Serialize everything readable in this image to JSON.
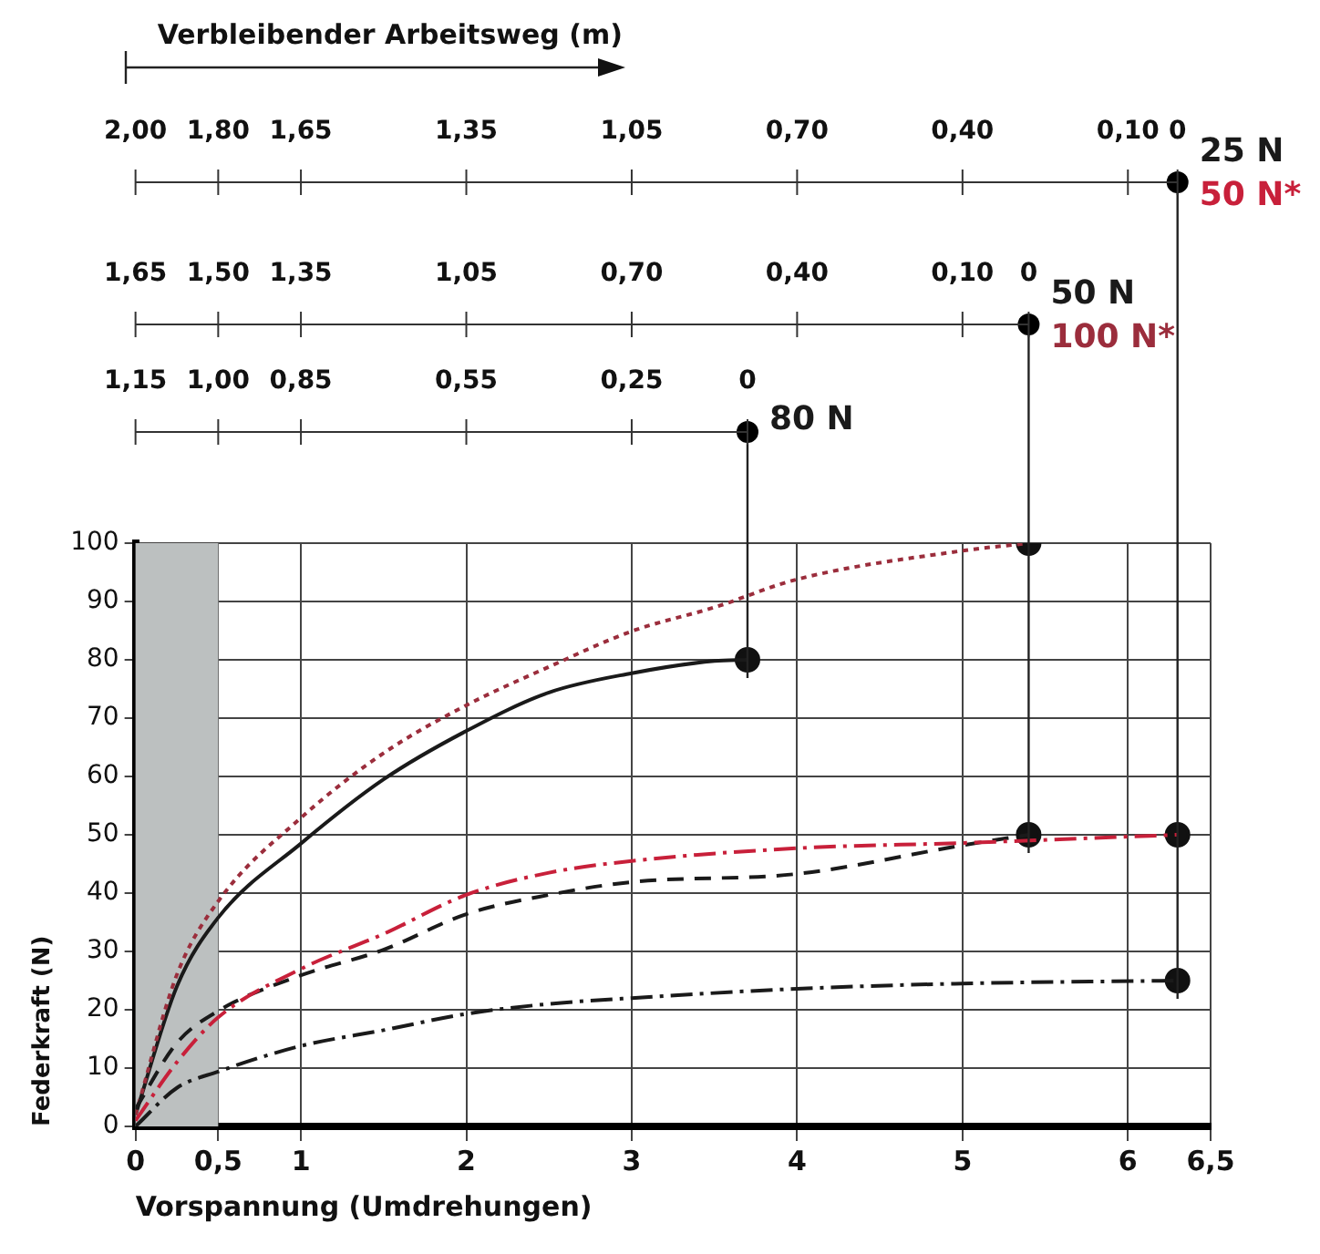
{
  "chart_data": [
    {
      "type": "other",
      "title": "Verbleibender Arbeitsweg (m)",
      "annotations": [
        "2,00",
        "1,80",
        "1,65",
        "1,35",
        "1,05",
        "0,70",
        "0,40",
        "0,10",
        "0"
      ]
    },
    {
      "type": "other",
      "annotations": [
        "1,65",
        "1,50",
        "1,35",
        "1,05",
        "0,70",
        "0,40",
        "0,10",
        "0"
      ]
    },
    {
      "type": "other",
      "annotations": [
        "1,15",
        "1,00",
        "0,85",
        "0,55",
        "0,25",
        "0"
      ]
    },
    {
      "type": "line",
      "xlabel": "Vorspannung (Umdrehungen)",
      "ylabel": "Federkraft (N)",
      "xlim": [
        0,
        6.5
      ],
      "xticks": [
        0,
        {
          "value": 0.5,
          "label": "0,5"
        },
        1,
        2,
        3,
        4,
        5,
        6,
        {
          "value": 6.5,
          "label": "6,5"
        }
      ],
      "ylim": [
        0,
        100
      ],
      "yticks": [
        0,
        10,
        20,
        30,
        40,
        50,
        60,
        70,
        80,
        90,
        100
      ],
      "grid": true,
      "marker": "none",
      "bands": [
        {
          "axis": "x",
          "from": 0,
          "to": 0.5,
          "color": "#bcc0c0"
        }
      ],
      "series": [
        {
          "name": "25 N",
          "color": "#1a1a1a",
          "line_style": "dashdot",
          "x": [
            0,
            0.25,
            0.5,
            1,
            1.5,
            2,
            2.5,
            3,
            4,
            5,
            6.3
          ],
          "values": [
            0,
            6.6,
            9.4,
            13.8,
            16.5,
            19.3,
            21,
            22,
            23.6,
            24.5,
            25
          ]
        },
        {
          "name": "50 N*",
          "color": "#c8203a",
          "line_style": "dashdot",
          "x": [
            0,
            0.25,
            0.5,
            1,
            1.5,
            2,
            2.5,
            3,
            4,
            5,
            6.3
          ],
          "values": [
            1,
            11,
            18.7,
            27,
            33,
            39.7,
            43.5,
            45.5,
            47.7,
            48.6,
            50
          ]
        },
        {
          "name": "50 N",
          "color": "#1a1a1a",
          "line_style": "dashed",
          "x": [
            0,
            0.25,
            0.5,
            1,
            1.5,
            2,
            2.5,
            3,
            4,
            5,
            5.4
          ],
          "values": [
            3,
            14.3,
            19.8,
            25.9,
            30.3,
            36.4,
            39.7,
            41.9,
            43.3,
            48.2,
            50
          ]
        },
        {
          "name": "100 N*",
          "color": "#9b2d3c",
          "line_style": "dotted",
          "x": [
            0,
            0.25,
            0.5,
            1,
            1.5,
            2,
            2.5,
            3,
            3.5,
            4,
            5,
            5.4
          ],
          "values": [
            2,
            26,
            38.6,
            52.9,
            64,
            72.2,
            78.8,
            84.9,
            89,
            93.8,
            98.7,
            100
          ]
        },
        {
          "name": "80 N",
          "color": "#1a1a1a",
          "line_style": "solid",
          "x": [
            0,
            0.25,
            0.5,
            1,
            1.5,
            2,
            2.5,
            3,
            3.5,
            3.7
          ],
          "values": [
            2,
            24,
            35.8,
            48.5,
            59.5,
            67.8,
            74.4,
            77.7,
            79.8,
            80
          ]
        },
        {
          "type": "scatter",
          "color": "#111111",
          "marker": "circle",
          "x": [
            3.7,
            5.4,
            5.4,
            6.3,
            6.3
          ],
          "values": [
            80,
            100,
            50,
            50,
            25
          ]
        }
      ]
    }
  ]
}
